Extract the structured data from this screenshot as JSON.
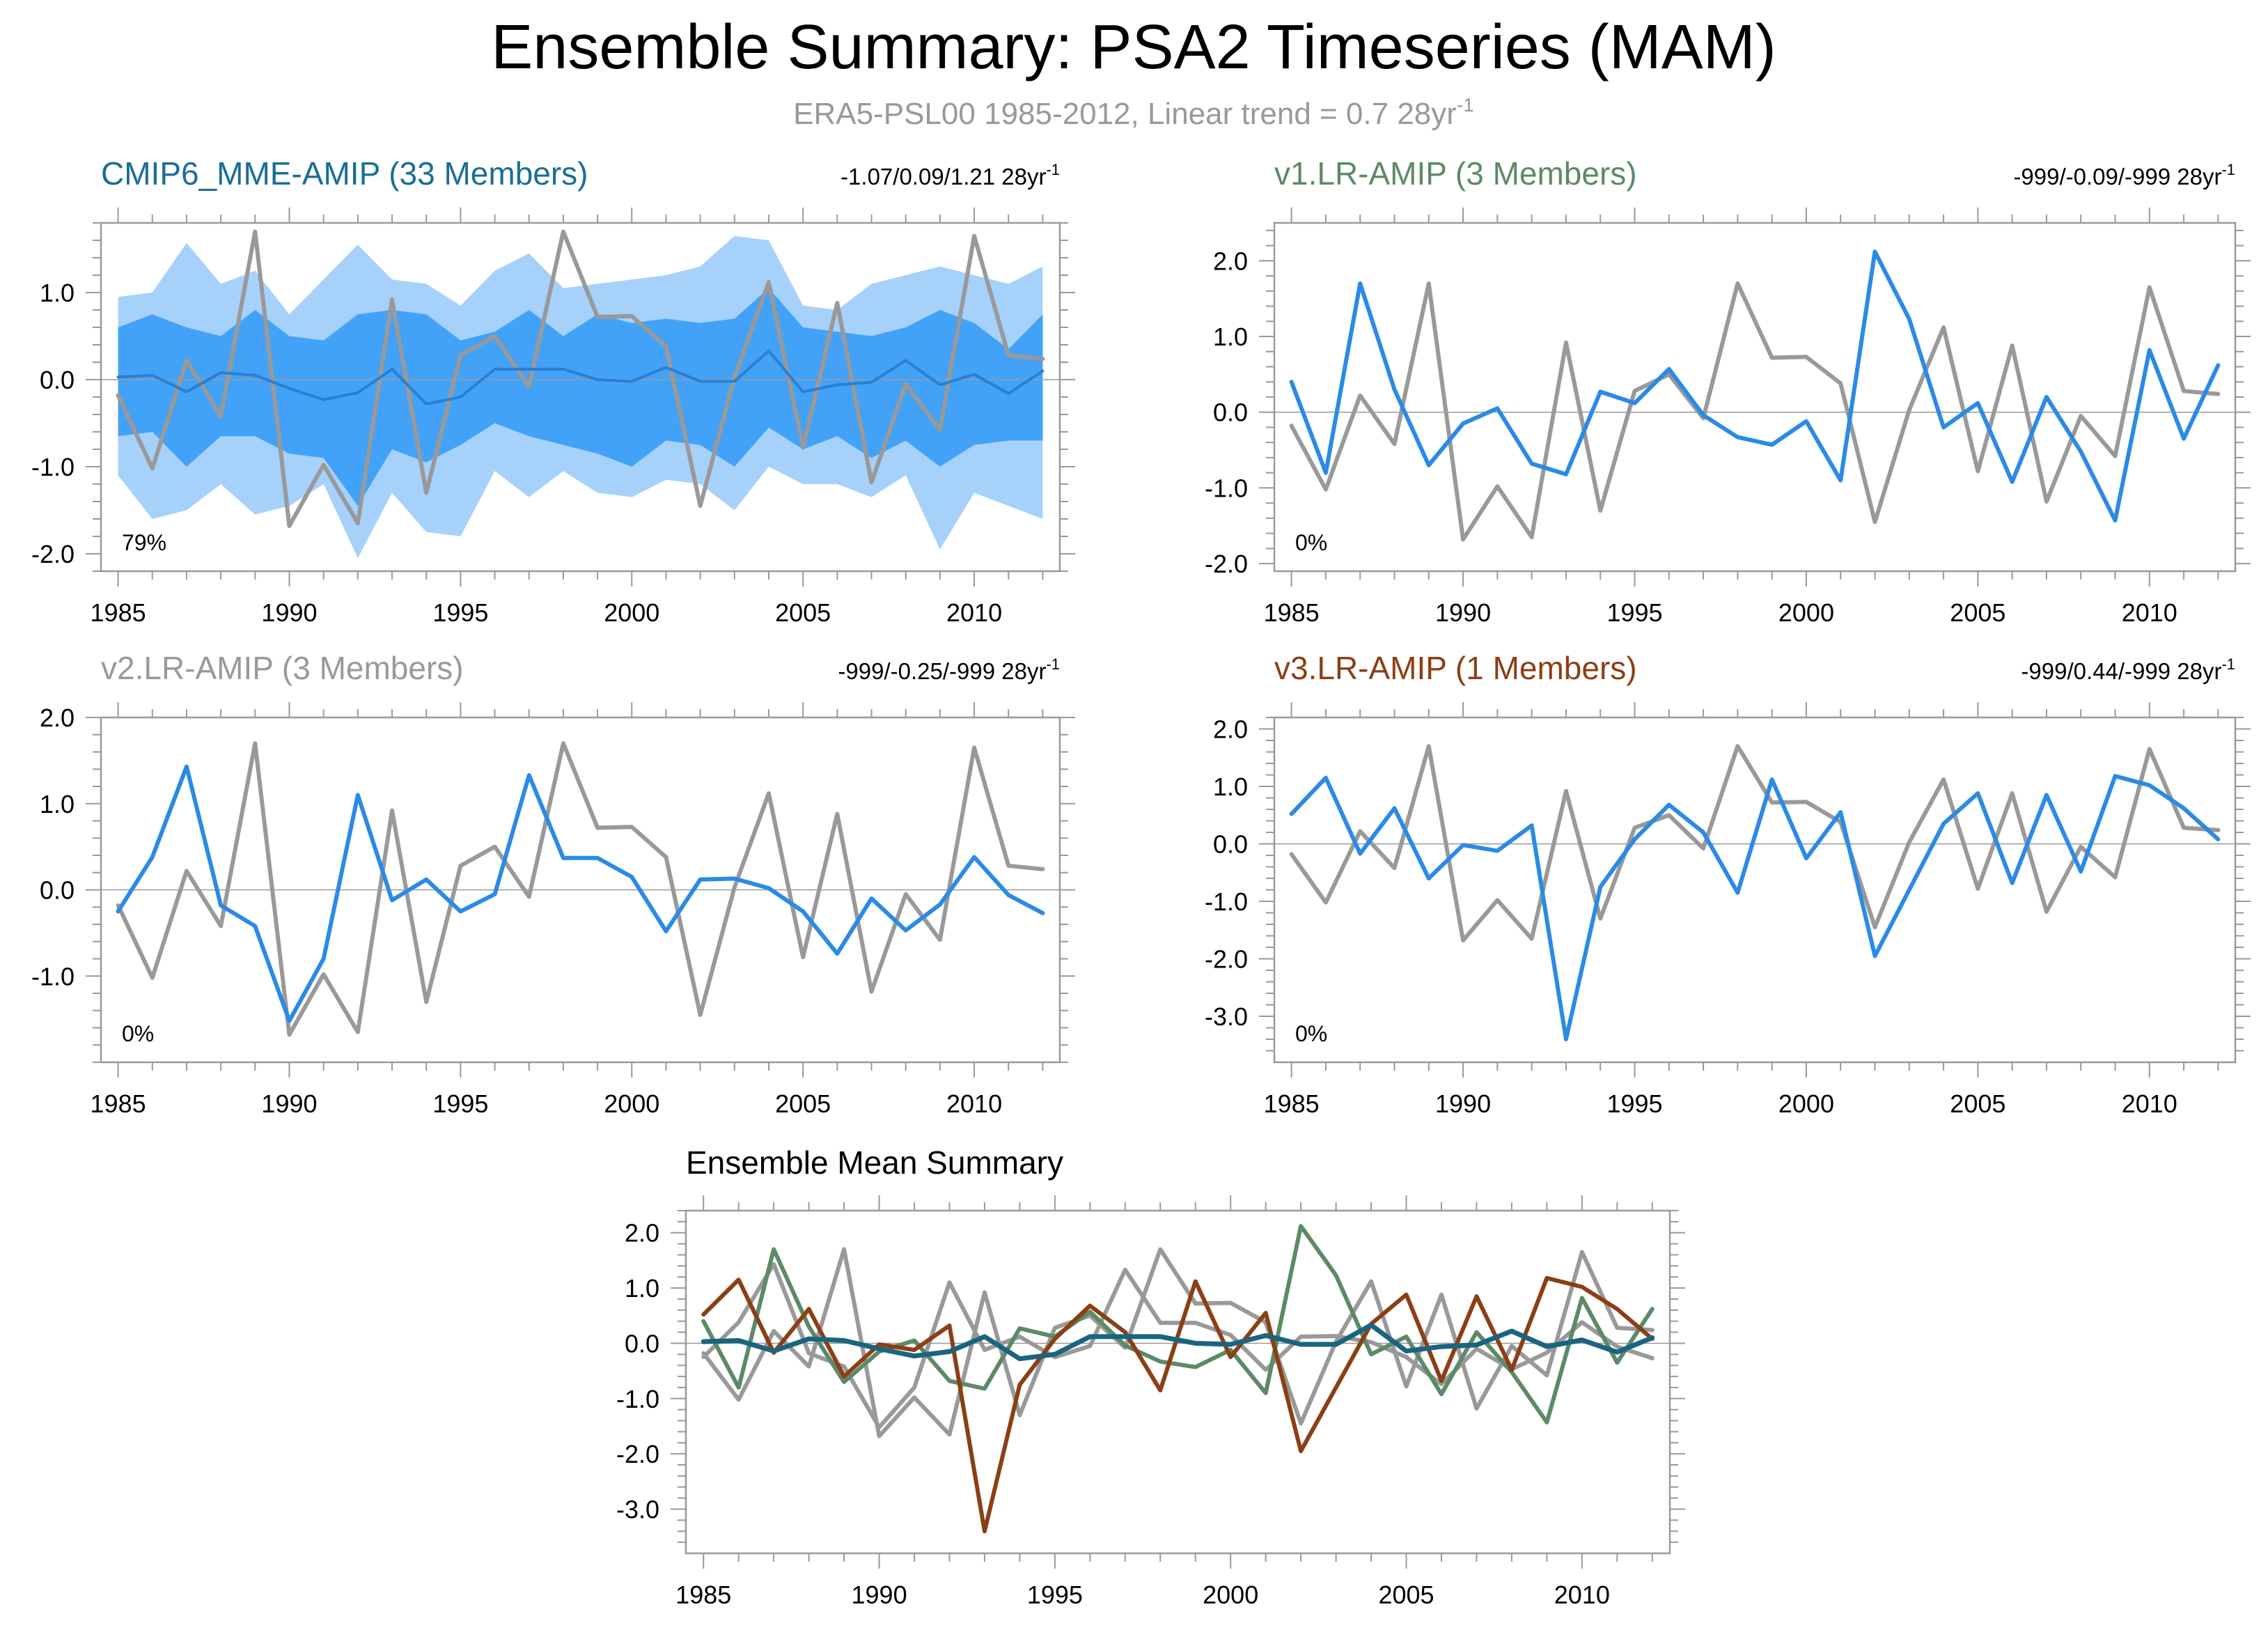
{
  "title": "Ensemble Summary: PSA2 Timeseries (MAM)",
  "subtitle_text": "ERA5-PSL00 1985-2012, Linear trend = 0.7 28yr",
  "subtitle_sup": "-1",
  "colors": {
    "obs": "#999999",
    "model": "#2b8ae6",
    "mme_title": "#1a6e96",
    "v1_title": "#5c8a66",
    "v2_title": "#999999",
    "v3_title": "#8b3f14",
    "mme_line": "#1a6480",
    "band_outer": "#a6d1fb",
    "band_inner": "#42a2f7"
  },
  "chart_data": [
    {
      "id": "mme",
      "type": "line",
      "title": "CMIP6_MME-AMIP (33 Members)",
      "stats_text": "-1.07/0.09/1.21 28yr",
      "stats_sup": "-1",
      "percent_label": "79%",
      "x": [
        1985,
        1986,
        1987,
        1988,
        1989,
        1990,
        1991,
        1992,
        1993,
        1994,
        1995,
        1996,
        1997,
        1998,
        1999,
        2000,
        2001,
        2002,
        2003,
        2004,
        2005,
        2006,
        2007,
        2008,
        2009,
        2010,
        2011,
        2012
      ],
      "xlim": [
        1984.5,
        2012.5
      ],
      "ylim": [
        -2.2,
        1.8
      ],
      "yticks": [
        -2.0,
        -1.0,
        0.0,
        1.0
      ],
      "ytick_labels": [
        "-2.0",
        "-1.0",
        "0.0",
        "1.0"
      ],
      "xticks": [
        1985,
        1990,
        1995,
        2000,
        2005,
        2010
      ],
      "xtick_labels": [
        "1985",
        "1990",
        "1995",
        "2000",
        "2005",
        "2010"
      ],
      "band_outer_upper": [
        0.95,
        1.0,
        1.57,
        1.1,
        1.25,
        0.75,
        1.15,
        1.55,
        1.15,
        1.1,
        0.85,
        1.25,
        1.45,
        1.05,
        1.1,
        1.15,
        1.2,
        1.3,
        1.65,
        1.6,
        0.85,
        0.8,
        1.1,
        1.2,
        1.3,
        1.2,
        1.1,
        1.3
      ],
      "band_outer_lower": [
        -1.1,
        -1.6,
        -1.5,
        -1.2,
        -1.55,
        -1.45,
        -1.2,
        -2.05,
        -1.3,
        -1.75,
        -1.8,
        -1.05,
        -1.35,
        -1.05,
        -1.3,
        -1.35,
        -1.15,
        -1.2,
        -1.5,
        -1.0,
        -1.2,
        -1.2,
        -1.35,
        -1.1,
        -1.95,
        -1.3,
        -1.45,
        -1.6
      ],
      "band_inner_upper": [
        0.6,
        0.75,
        0.6,
        0.5,
        0.8,
        0.5,
        0.45,
        0.75,
        0.8,
        0.75,
        0.45,
        0.55,
        0.8,
        0.5,
        0.75,
        0.65,
        0.7,
        0.65,
        0.7,
        1.05,
        0.6,
        0.55,
        0.5,
        0.6,
        0.8,
        0.65,
        0.35,
        0.75
      ],
      "band_inner_lower": [
        -0.65,
        -0.6,
        -1.0,
        -0.65,
        -0.65,
        -0.85,
        -0.9,
        -1.45,
        -0.8,
        -0.95,
        -0.75,
        -0.5,
        -0.65,
        -0.75,
        -0.85,
        -1.0,
        -0.7,
        -0.75,
        -1.0,
        -0.55,
        -0.8,
        -0.65,
        -0.9,
        -0.7,
        -1.0,
        -0.75,
        -0.7,
        -0.7
      ],
      "series": [
        {
          "name": "ERA5-PSL00",
          "color": "#999999",
          "width": 6,
          "values": [
            -0.18,
            -1.02,
            0.22,
            -0.42,
            1.7,
            -1.68,
            -0.98,
            -1.65,
            0.92,
            -1.3,
            0.28,
            0.5,
            -0.08,
            1.7,
            0.72,
            0.73,
            0.38,
            -1.45,
            0.03,
            1.12,
            -0.78,
            0.88,
            -1.18,
            -0.05,
            -0.58,
            1.65,
            0.28,
            0.24
          ]
        },
        {
          "name": "CMIP6_MME-AMIP",
          "color": "#2a7fd2",
          "width": 4,
          "values": [
            0.03,
            0.05,
            -0.14,
            0.08,
            0.05,
            -0.1,
            -0.23,
            -0.15,
            0.12,
            -0.28,
            -0.2,
            0.12,
            0.12,
            0.12,
            0.0,
            -0.02,
            0.14,
            -0.02,
            -0.02,
            0.33,
            -0.14,
            -0.06,
            -0.03,
            0.22,
            -0.06,
            0.06,
            -0.16,
            0.1
          ]
        }
      ]
    },
    {
      "id": "v1",
      "type": "line",
      "title": "v1.LR-AMIP (3 Members)",
      "stats_text": "-999/-0.09/-999 28yr",
      "stats_sup": "-1",
      "percent_label": "0%",
      "x": [
        1985,
        1986,
        1987,
        1988,
        1989,
        1990,
        1991,
        1992,
        1993,
        1994,
        1995,
        1996,
        1997,
        1998,
        1999,
        2000,
        2001,
        2002,
        2003,
        2004,
        2005,
        2006,
        2007,
        2008,
        2009,
        2010,
        2011,
        2012
      ],
      "xlim": [
        1984.5,
        2012.5
      ],
      "ylim": [
        -2.1,
        2.5
      ],
      "yticks": [
        -2.0,
        -1.0,
        0.0,
        1.0,
        2.0
      ],
      "ytick_labels": [
        "-2.0",
        "-1.0",
        "0.0",
        "1.0",
        "2.0"
      ],
      "xticks": [
        1985,
        1990,
        1995,
        2000,
        2005,
        2010
      ],
      "xtick_labels": [
        "1985",
        "1990",
        "1995",
        "2000",
        "2005",
        "2010"
      ],
      "series": [
        {
          "name": "ERA5-PSL00",
          "color": "#999999",
          "width": 6,
          "values": [
            -0.18,
            -1.02,
            0.22,
            -0.42,
            1.7,
            -1.68,
            -0.98,
            -1.65,
            0.92,
            -1.3,
            0.28,
            0.5,
            -0.08,
            1.7,
            0.72,
            0.73,
            0.38,
            -1.45,
            0.03,
            1.12,
            -0.78,
            0.88,
            -1.18,
            -0.05,
            -0.58,
            1.65,
            0.28,
            0.24
          ]
        },
        {
          "name": "v1.LR-AMIP",
          "color": "#2b8ae6",
          "width": 6,
          "values": [
            0.4,
            -0.8,
            1.7,
            0.3,
            -0.7,
            -0.15,
            0.05,
            -0.68,
            -0.82,
            0.27,
            0.12,
            0.57,
            -0.04,
            -0.33,
            -0.43,
            -0.12,
            -0.9,
            2.12,
            1.23,
            -0.2,
            0.12,
            -0.92,
            0.2,
            -0.52,
            -1.43,
            0.82,
            -0.35,
            0.62
          ]
        }
      ]
    },
    {
      "id": "v2",
      "type": "line",
      "title": "v2.LR-AMIP (3 Members)",
      "stats_text": "-999/-0.25/-999 28yr",
      "stats_sup": "-1",
      "percent_label": "0%",
      "x": [
        1985,
        1986,
        1987,
        1988,
        1989,
        1990,
        1991,
        1992,
        1993,
        1994,
        1995,
        1996,
        1997,
        1998,
        1999,
        2000,
        2001,
        2002,
        2003,
        2004,
        2005,
        2006,
        2007,
        2008,
        2009,
        2010,
        2011,
        2012
      ],
      "xlim": [
        1984.5,
        2012.5
      ],
      "ylim": [
        -2.0,
        2.0
      ],
      "yticks": [
        -1.0,
        0.0,
        1.0,
        2.0
      ],
      "ytick_labels": [
        "-1.0",
        "0.0",
        "1.0",
        "2.0"
      ],
      "xticks": [
        1985,
        1990,
        1995,
        2000,
        2005,
        2010
      ],
      "xtick_labels": [
        "1985",
        "1990",
        "1995",
        "2000",
        "2005",
        "2010"
      ],
      "series": [
        {
          "name": "ERA5-PSL00",
          "color": "#999999",
          "width": 6,
          "values": [
            -0.18,
            -1.02,
            0.22,
            -0.42,
            1.7,
            -1.68,
            -0.98,
            -1.65,
            0.92,
            -1.3,
            0.28,
            0.5,
            -0.08,
            1.7,
            0.72,
            0.73,
            0.38,
            -1.45,
            0.03,
            1.12,
            -0.78,
            0.88,
            -1.18,
            -0.05,
            -0.58,
            1.65,
            0.28,
            0.24
          ]
        },
        {
          "name": "v2.LR-AMIP",
          "color": "#2b8ae6",
          "width": 6,
          "values": [
            -0.25,
            0.38,
            1.43,
            -0.18,
            -0.42,
            -1.52,
            -0.8,
            1.1,
            -0.12,
            0.12,
            -0.25,
            -0.05,
            1.33,
            0.37,
            0.37,
            0.15,
            -0.48,
            0.12,
            0.13,
            0.02,
            -0.25,
            -0.74,
            -0.1,
            -0.47,
            -0.17,
            0.38,
            -0.06,
            -0.27
          ]
        }
      ]
    },
    {
      "id": "v3",
      "type": "line",
      "title": "v3.LR-AMIP (1 Members)",
      "stats_text": "-999/0.44/-999 28yr",
      "stats_sup": "-1",
      "percent_label": "0%",
      "x": [
        1985,
        1986,
        1987,
        1988,
        1989,
        1990,
        1991,
        1992,
        1993,
        1994,
        1995,
        1996,
        1997,
        1998,
        1999,
        2000,
        2001,
        2002,
        2003,
        2004,
        2005,
        2006,
        2007,
        2008,
        2009,
        2010,
        2011,
        2012
      ],
      "xlim": [
        1984.5,
        2012.5
      ],
      "ylim": [
        -3.8,
        2.2
      ],
      "yticks": [
        -3.0,
        -2.0,
        -1.0,
        0.0,
        1.0,
        2.0
      ],
      "ytick_labels": [
        "-3.0",
        "-2.0",
        "-1.0",
        "0.0",
        "1.0",
        "2.0"
      ],
      "xticks": [
        1985,
        1990,
        1995,
        2000,
        2005,
        2010
      ],
      "xtick_labels": [
        "1985",
        "1990",
        "1995",
        "2000",
        "2005",
        "2010"
      ],
      "series": [
        {
          "name": "ERA5-PSL00",
          "color": "#999999",
          "width": 6,
          "values": [
            -0.18,
            -1.02,
            0.22,
            -0.42,
            1.7,
            -1.68,
            -0.98,
            -1.65,
            0.92,
            -1.3,
            0.28,
            0.5,
            -0.08,
            1.7,
            0.72,
            0.73,
            0.38,
            -1.45,
            0.03,
            1.12,
            -0.78,
            0.88,
            -1.18,
            -0.05,
            -0.58,
            1.65,
            0.28,
            0.24
          ]
        },
        {
          "name": "v3.LR-AMIP",
          "color": "#2b8ae6",
          "width": 6,
          "values": [
            0.52,
            1.15,
            -0.17,
            0.62,
            -0.6,
            -0.02,
            -0.12,
            0.32,
            -3.4,
            -0.75,
            0.08,
            0.68,
            0.2,
            -0.85,
            1.12,
            -0.25,
            0.55,
            -1.95,
            -0.8,
            0.35,
            0.88,
            -0.68,
            0.85,
            -0.48,
            1.18,
            1.02,
            0.62,
            0.08
          ]
        }
      ]
    },
    {
      "id": "summary",
      "type": "line",
      "title": "Ensemble Mean Summary",
      "x": [
        1985,
        1986,
        1987,
        1988,
        1989,
        1990,
        1991,
        1992,
        1993,
        1994,
        1995,
        1996,
        1997,
        1998,
        1999,
        2000,
        2001,
        2002,
        2003,
        2004,
        2005,
        2006,
        2007,
        2008,
        2009,
        2010,
        2011,
        2012
      ],
      "xlim": [
        1984.5,
        2012.5
      ],
      "ylim": [
        -3.8,
        2.4
      ],
      "yticks": [
        -3.0,
        -2.0,
        -1.0,
        0.0,
        1.0,
        2.0
      ],
      "ytick_labels": [
        "-3.0",
        "-2.0",
        "-1.0",
        "0.0",
        "1.0",
        "2.0"
      ],
      "xticks": [
        1985,
        1990,
        1995,
        2000,
        2005,
        2010
      ],
      "xtick_labels": [
        "1985",
        "1990",
        "1995",
        "2000",
        "2005",
        "2010"
      ],
      "series": [
        {
          "name": "ERA5-PSL00",
          "color": "#999999",
          "width": 6,
          "values": [
            -0.18,
            -1.02,
            0.22,
            -0.42,
            1.7,
            -1.68,
            -0.98,
            -1.65,
            0.92,
            -1.3,
            0.28,
            0.5,
            -0.08,
            1.7,
            0.72,
            0.73,
            0.38,
            -1.45,
            0.03,
            1.12,
            -0.78,
            0.88,
            -1.18,
            -0.05,
            -0.58,
            1.65,
            0.28,
            0.24
          ]
        },
        {
          "name": "v2.LR-AMIP",
          "color": "#999999",
          "width": 6,
          "values": [
            -0.25,
            0.38,
            1.43,
            -0.18,
            -0.42,
            -1.52,
            -0.8,
            1.1,
            -0.12,
            0.12,
            -0.25,
            -0.05,
            1.33,
            0.37,
            0.37,
            0.15,
            -0.48,
            0.12,
            0.13,
            0.02,
            -0.25,
            -0.74,
            -0.1,
            -0.47,
            -0.17,
            0.38,
            -0.06,
            -0.27
          ]
        },
        {
          "name": "v1.LR-AMIP",
          "color": "#5c8a66",
          "width": 6,
          "values": [
            0.4,
            -0.8,
            1.7,
            0.3,
            -0.7,
            -0.15,
            0.05,
            -0.68,
            -0.82,
            0.27,
            0.12,
            0.57,
            -0.04,
            -0.33,
            -0.43,
            -0.12,
            -0.9,
            2.12,
            1.23,
            -0.2,
            0.12,
            -0.92,
            0.2,
            -0.52,
            -1.43,
            0.82,
            -0.35,
            0.62
          ]
        },
        {
          "name": "v3.LR-AMIP",
          "color": "#8b3f14",
          "width": 6,
          "values": [
            0.52,
            1.15,
            -0.17,
            0.62,
            -0.6,
            -0.02,
            -0.12,
            0.32,
            -3.4,
            -0.75,
            0.08,
            0.68,
            0.2,
            -0.85,
            1.12,
            -0.25,
            0.55,
            -1.95,
            -0.8,
            0.35,
            0.88,
            -0.68,
            0.85,
            -0.48,
            1.18,
            1.02,
            0.62,
            0.08
          ]
        },
        {
          "name": "CMIP6_MME-AMIP",
          "color": "#1a6480",
          "width": 7,
          "values": [
            0.03,
            0.05,
            -0.14,
            0.08,
            0.05,
            -0.1,
            -0.23,
            -0.15,
            0.12,
            -0.28,
            -0.2,
            0.12,
            0.12,
            0.12,
            0.0,
            -0.02,
            0.14,
            -0.02,
            -0.02,
            0.33,
            -0.14,
            -0.06,
            -0.03,
            0.22,
            -0.06,
            0.06,
            -0.16,
            0.1
          ]
        }
      ]
    }
  ]
}
